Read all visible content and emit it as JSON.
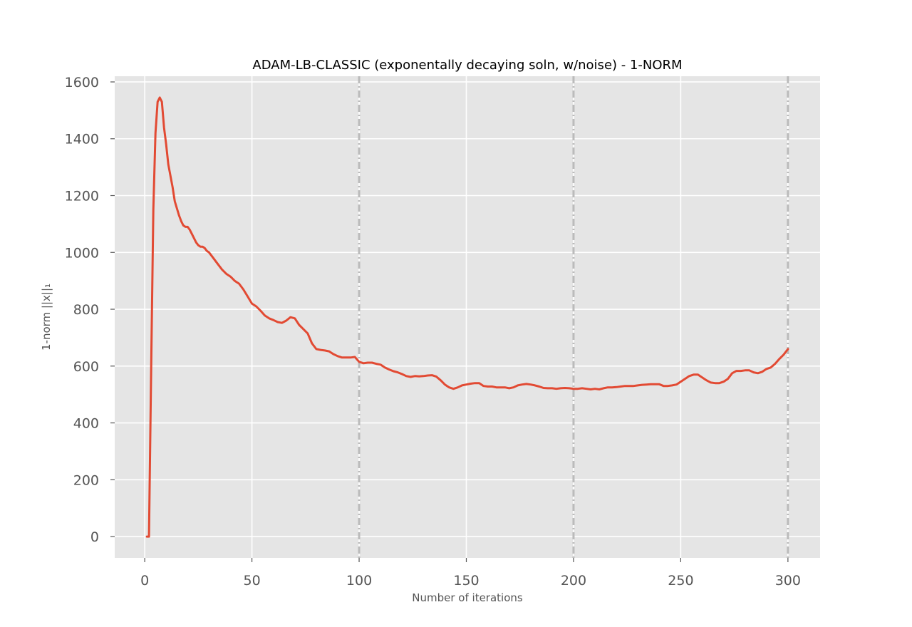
{
  "chart_data": {
    "type": "line",
    "title": "ADAM-LB-CLASSIC (exponentally decaying soln, w/noise) - 1-NORM",
    "xlabel": "Number of iterations",
    "ylabel": "1-norm ||x||₁",
    "xlim": [
      -14,
      315
    ],
    "ylim": [
      -75,
      1620
    ],
    "xticks": [
      0,
      50,
      100,
      150,
      200,
      250,
      300
    ],
    "yticks": [
      0,
      200,
      400,
      600,
      800,
      1000,
      1200,
      1400,
      1600
    ],
    "grid": true,
    "vlines": [
      100,
      200,
      300
    ],
    "colors": {
      "line": "#E24A33",
      "background": "#E5E5E5",
      "grid": "#FFFFFF",
      "vline": "#BBBBBB"
    },
    "series": [
      {
        "x": [
          1,
          2,
          3,
          4,
          5,
          6,
          7,
          8,
          9,
          10,
          11,
          12,
          13,
          14,
          15,
          16,
          17,
          18,
          19,
          20,
          21,
          22,
          23,
          24,
          25,
          26,
          27,
          28,
          29,
          30,
          32,
          34,
          36,
          38,
          40,
          42,
          44,
          46,
          48,
          50,
          52,
          54,
          56,
          58,
          60,
          62,
          64,
          66,
          68,
          70,
          72,
          74,
          76,
          78,
          80,
          82,
          84,
          86,
          88,
          90,
          92,
          94,
          96,
          98,
          100,
          102,
          104,
          106,
          108,
          110,
          112,
          114,
          116,
          118,
          120,
          122,
          124,
          126,
          128,
          130,
          132,
          134,
          136,
          138,
          140,
          142,
          144,
          146,
          148,
          150,
          152,
          154,
          156,
          158,
          160,
          162,
          164,
          166,
          168,
          170,
          172,
          174,
          176,
          178,
          180,
          182,
          184,
          186,
          188,
          190,
          192,
          194,
          196,
          198,
          200,
          202,
          204,
          206,
          208,
          210,
          212,
          214,
          216,
          218,
          220,
          222,
          224,
          226,
          228,
          230,
          232,
          234,
          236,
          238,
          240,
          242,
          244,
          246,
          248,
          250,
          252,
          254,
          256,
          258,
          260,
          262,
          264,
          266,
          268,
          270,
          272,
          274,
          276,
          278,
          280,
          282,
          284,
          286,
          288,
          290,
          292,
          294,
          296,
          298,
          300
        ],
        "y": [
          0,
          0,
          600,
          1150,
          1420,
          1530,
          1545,
          1530,
          1440,
          1380,
          1310,
          1270,
          1230,
          1180,
          1155,
          1130,
          1110,
          1095,
          1090,
          1090,
          1080,
          1065,
          1050,
          1035,
          1025,
          1020,
          1020,
          1015,
          1005,
          1000,
          980,
          960,
          940,
          925,
          915,
          900,
          890,
          870,
          845,
          820,
          810,
          795,
          778,
          768,
          762,
          755,
          752,
          760,
          772,
          768,
          745,
          730,
          715,
          680,
          660,
          657,
          655,
          652,
          642,
          635,
          630,
          630,
          630,
          632,
          615,
          610,
          612,
          612,
          608,
          605,
          595,
          588,
          582,
          578,
          572,
          565,
          562,
          565,
          564,
          565,
          567,
          568,
          563,
          550,
          535,
          525,
          520,
          525,
          532,
          535,
          538,
          540,
          540,
          530,
          528,
          528,
          525,
          525,
          525,
          522,
          525,
          532,
          535,
          537,
          535,
          532,
          528,
          523,
          522,
          522,
          520,
          522,
          523,
          522,
          520,
          520,
          522,
          520,
          518,
          520,
          518,
          522,
          525,
          525,
          526,
          528,
          530,
          530,
          530,
          532,
          534,
          535,
          536,
          536,
          536,
          530,
          530,
          532,
          535,
          545,
          555,
          565,
          570,
          570,
          560,
          550,
          542,
          540,
          540,
          545,
          555,
          575,
          583,
          583,
          585,
          585,
          578,
          575,
          580,
          590,
          595,
          608,
          625,
          640,
          660
        ]
      }
    ]
  }
}
